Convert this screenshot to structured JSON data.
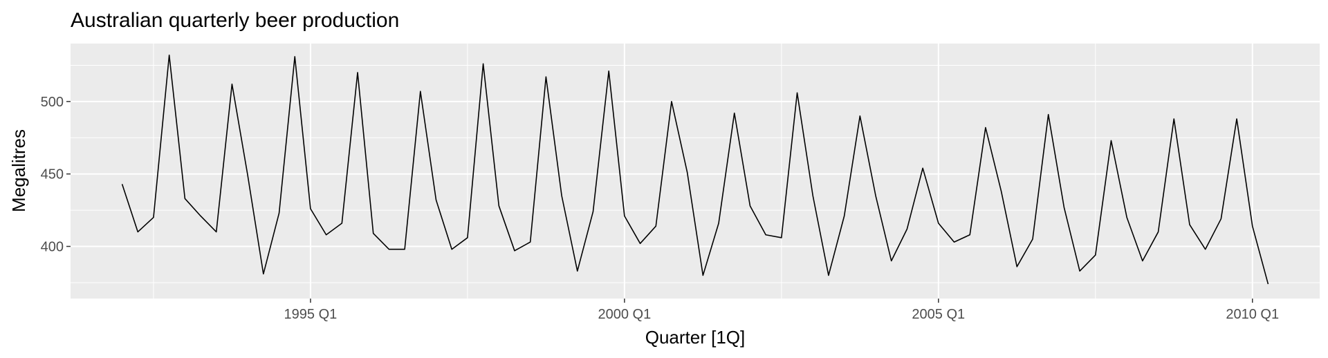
{
  "chart_data": {
    "type": "line",
    "title": "Australian quarterly beer production",
    "xlabel": "Quarter [1Q]",
    "ylabel": "Megalitres",
    "x_start": "1992 Q1",
    "x_end": "2010 Q2",
    "xticks": [
      {
        "x": "1995 Q1",
        "label": "1995 Q1"
      },
      {
        "x": "2000 Q1",
        "label": "2000 Q1"
      },
      {
        "x": "2005 Q1",
        "label": "2005 Q1"
      },
      {
        "x": "2010 Q1",
        "label": "2010 Q1"
      }
    ],
    "yticks": [
      400,
      450,
      500
    ],
    "ylim": [
      364,
      540
    ],
    "grid": true,
    "series": [
      {
        "values": [
          443,
          410,
          420,
          532,
          433,
          421,
          410,
          512,
          449,
          381,
          423,
          531,
          426,
          408,
          416,
          520,
          409,
          398,
          398,
          507,
          432,
          398,
          406,
          526,
          428,
          397,
          403,
          517,
          435,
          383,
          424,
          521,
          421,
          402,
          414,
          500,
          451,
          380,
          416,
          492,
          428,
          408,
          406,
          506,
          435,
          380,
          421,
          490,
          435,
          390,
          412,
          454,
          416,
          403,
          408,
          482,
          438,
          386,
          405,
          491,
          427,
          383,
          394,
          473,
          420,
          390,
          410,
          488,
          415,
          398,
          419,
          488,
          414,
          374
        ]
      }
    ]
  },
  "colors": {
    "panel": "#ebebeb",
    "grid_major": "#ffffff",
    "line": "#000000"
  }
}
